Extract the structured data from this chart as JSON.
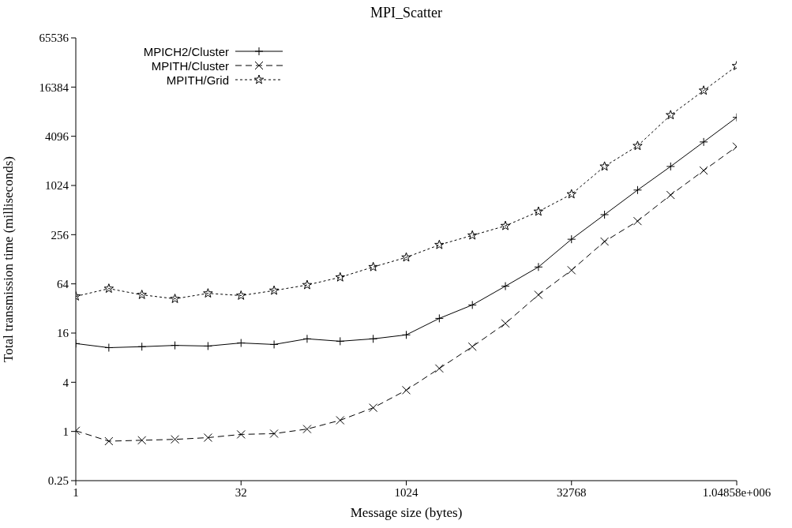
{
  "chart_data": {
    "type": "line",
    "title": "MPI_Scatter",
    "xlabel": "Message size (bytes)",
    "ylabel": "Total transmission time (milliseconds)",
    "log": "xy",
    "legend": "top left",
    "x": [
      1,
      2,
      4,
      8,
      16,
      32,
      64,
      128,
      256,
      512,
      1024,
      2048,
      4096,
      8192,
      16384,
      32768,
      65536,
      131072,
      262144,
      524288,
      1048576
    ],
    "xlim": [
      1,
      1048576
    ],
    "xticks": [
      1,
      32,
      1024,
      32768,
      {
        "value": 1048576,
        "label": "1.04858e+006"
      }
    ],
    "ylim": [
      0.25,
      65536
    ],
    "yticks": [
      0.25,
      1,
      4,
      16,
      64,
      256,
      1024,
      4096,
      16384,
      65536
    ],
    "series": [
      {
        "name": "MPICH2/Cluster",
        "color": "#000000",
        "marker": "plus",
        "line_style": "solid",
        "values": [
          11.9,
          10.6,
          10.9,
          11.3,
          11.1,
          12.1,
          11.6,
          13.6,
          12.7,
          13.6,
          15.2,
          24.2,
          35.3,
          60,
          103,
          225,
          450,
          900,
          1750,
          3490,
          6980
        ]
      },
      {
        "name": "MPITH/Cluster",
        "color": "#000000",
        "marker": "cross",
        "line_style": "dashed",
        "values": [
          1.02,
          0.76,
          0.78,
          0.8,
          0.84,
          0.92,
          0.94,
          1.07,
          1.37,
          1.95,
          3.2,
          5.9,
          10.9,
          21,
          47,
          94,
          211,
          375,
          783,
          1560,
          3060
        ]
      },
      {
        "name": "MPITH/Grid",
        "color": "#000000",
        "marker": "star",
        "line_style": "dotted",
        "values": [
          45,
          56,
          47,
          42,
          49,
          46,
          53,
          62,
          77,
          103,
          135,
          192,
          251,
          328,
          491,
          801,
          1750,
          3125,
          7440,
          14860,
          29700
        ]
      }
    ]
  }
}
